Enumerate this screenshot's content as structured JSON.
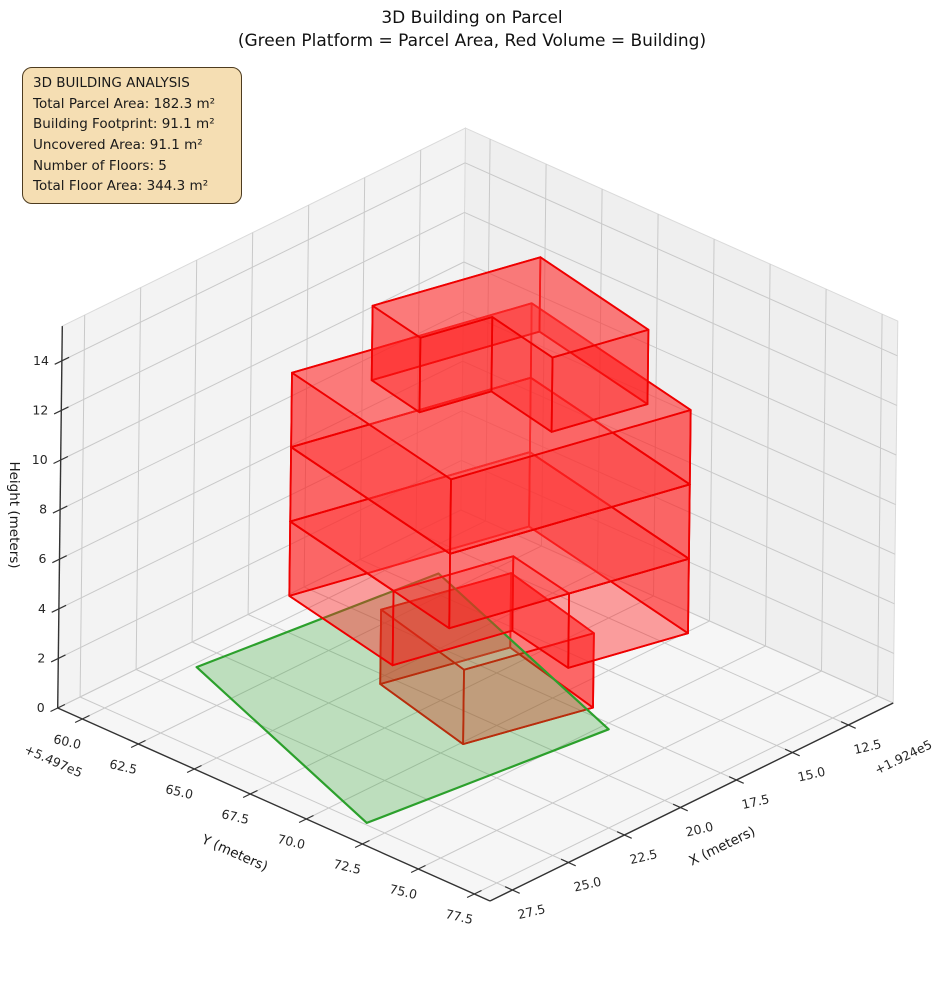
{
  "page": {
    "title": "3D Building on Parcel",
    "subtitle": "(Green Platform = Parcel Area, Red Volume = Building)"
  },
  "info_box": {
    "title": "3D BUILDING ANALYSIS",
    "lines": [
      "Total Parcel Area: 182.3 m²",
      "Building Footprint: 91.1 m²",
      "Uncovered Area: 91.1 m²",
      "Number of Floors: 5",
      "Total Floor Area: 344.3 m²"
    ],
    "background_color": "#f5deb3",
    "border_color": "#4d3b1f"
  },
  "chart_data": {
    "type": "3d-building-plot",
    "title": "3D Building on Parcel",
    "subtitle": "(Green Platform = Parcel Area, Red Volume = Building)",
    "stats": {
      "total_parcel_area_m2": 182.3,
      "building_footprint_m2": 91.1,
      "uncovered_area_m2": 91.1,
      "number_of_floors": 5,
      "total_floor_area_m2": 344.3,
      "floor_height_m": 3,
      "building_total_height_m": 15
    },
    "axes": {
      "x": {
        "label": "X (meters)",
        "ticks": [
          "12.5",
          "15.0",
          "17.5",
          "20.0",
          "22.5",
          "25.0",
          "27.5"
        ],
        "tick_values": [
          12.5,
          15.0,
          17.5,
          20.0,
          22.5,
          25.0,
          27.5
        ],
        "offset_text": "+1.924e5",
        "range": [
          10.5,
          28.5
        ]
      },
      "y": {
        "label": "Y (meters)",
        "ticks": [
          "60.0",
          "62.5",
          "65.0",
          "67.5",
          "70.0",
          "72.5",
          "75.0",
          "77.5"
        ],
        "tick_values": [
          60.0,
          62.5,
          65.0,
          67.5,
          70.0,
          72.5,
          75.0,
          77.5
        ],
        "offset_text": "+5.497e5",
        "range": [
          58.9,
          78.2
        ]
      },
      "z": {
        "label": "Height (meters)",
        "ticks": [
          "0",
          "2",
          "4",
          "6",
          "8",
          "10",
          "12",
          "14"
        ],
        "tick_values": [
          0,
          2,
          4,
          6,
          8,
          10,
          12,
          14
        ],
        "range": [
          0,
          15.4
        ]
      }
    },
    "projection": {
      "origin_world": [
        28.5,
        78.2,
        0
      ],
      "origin_screen": [
        490,
        901
      ],
      "ex": [
        -22.4,
        11.0
      ],
      "ey": [
        22.4,
        10.0
      ],
      "ez": [
        0.3,
        -24.8
      ]
    },
    "style": {
      "pane_floor": "#f6f6f6",
      "pane_left": "#f3f3f3",
      "pane_right": "#efefef",
      "pane_edge": "#dadada",
      "grid_color": "#c9c9c9",
      "axis_line_color": "#333333",
      "tick_label_color": "#262626",
      "axis_title_color": "#1a1a1a",
      "building_edge": "#ef0000",
      "building_side_fill": "#ff1e1e",
      "building_top_fill": "#ff4646",
      "side_alpha": 0.42,
      "top_alpha": 0.38,
      "parcel_edge": "#2ca02c",
      "parcel_fill": "#2ca02c",
      "parcel_alpha": 0.28
    },
    "parcel": {
      "name": "parcel-platform",
      "z": 0,
      "polygon": [
        [
          23.6,
          60.2
        ],
        [
          14.0,
          61.4
        ],
        [
          17.8,
          72.8
        ],
        [
          27.4,
          71.6
        ]
      ]
    },
    "building": {
      "floors": [
        {
          "name": "floor-1",
          "z": [
            0,
            3
          ],
          "polygon": [
            [
              20.5,
              65.3
            ],
            [
              21.6,
              70.1
            ],
            [
              17.1,
              71.4
            ],
            [
              16.0,
              66.6
            ]
          ]
        },
        {
          "name": "floor-2",
          "z": [
            3,
            6
          ],
          "polygon": [
            [
              21.8,
              62.5
            ],
            [
              22.91,
              68.22
            ],
            [
              18.71,
              69.37
            ],
            [
              19.3,
              72.45
            ],
            [
              15.1,
              73.6
            ],
            [
              13.4,
              64.8
            ]
          ]
        },
        {
          "name": "floor-3",
          "z": [
            6,
            9
          ],
          "polygon": [
            [
              21.8,
              62.5
            ],
            [
              23.5,
              71.3
            ],
            [
              15.1,
              73.6
            ],
            [
              13.4,
              64.8
            ]
          ]
        },
        {
          "name": "floor-4",
          "z": [
            9,
            12
          ],
          "polygon": [
            [
              21.8,
              62.5
            ],
            [
              23.5,
              71.3
            ],
            [
              15.1,
              73.6
            ],
            [
              13.4,
              64.8
            ]
          ]
        },
        {
          "name": "floor-5",
          "z": [
            12,
            15
          ],
          "polygon": [
            [
              20.46,
              64.72
            ],
            [
              14.58,
              66.33
            ],
            [
              15.74,
              72.31
            ],
            [
              19.1,
              71.39
            ],
            [
              18.45,
              68.05
            ],
            [
              20.97,
              67.36
            ]
          ]
        }
      ],
      "draw_order": [
        "floor-1",
        "parcel",
        "floor-2",
        "floor-3",
        "floor-4",
        "floor-5"
      ]
    }
  }
}
